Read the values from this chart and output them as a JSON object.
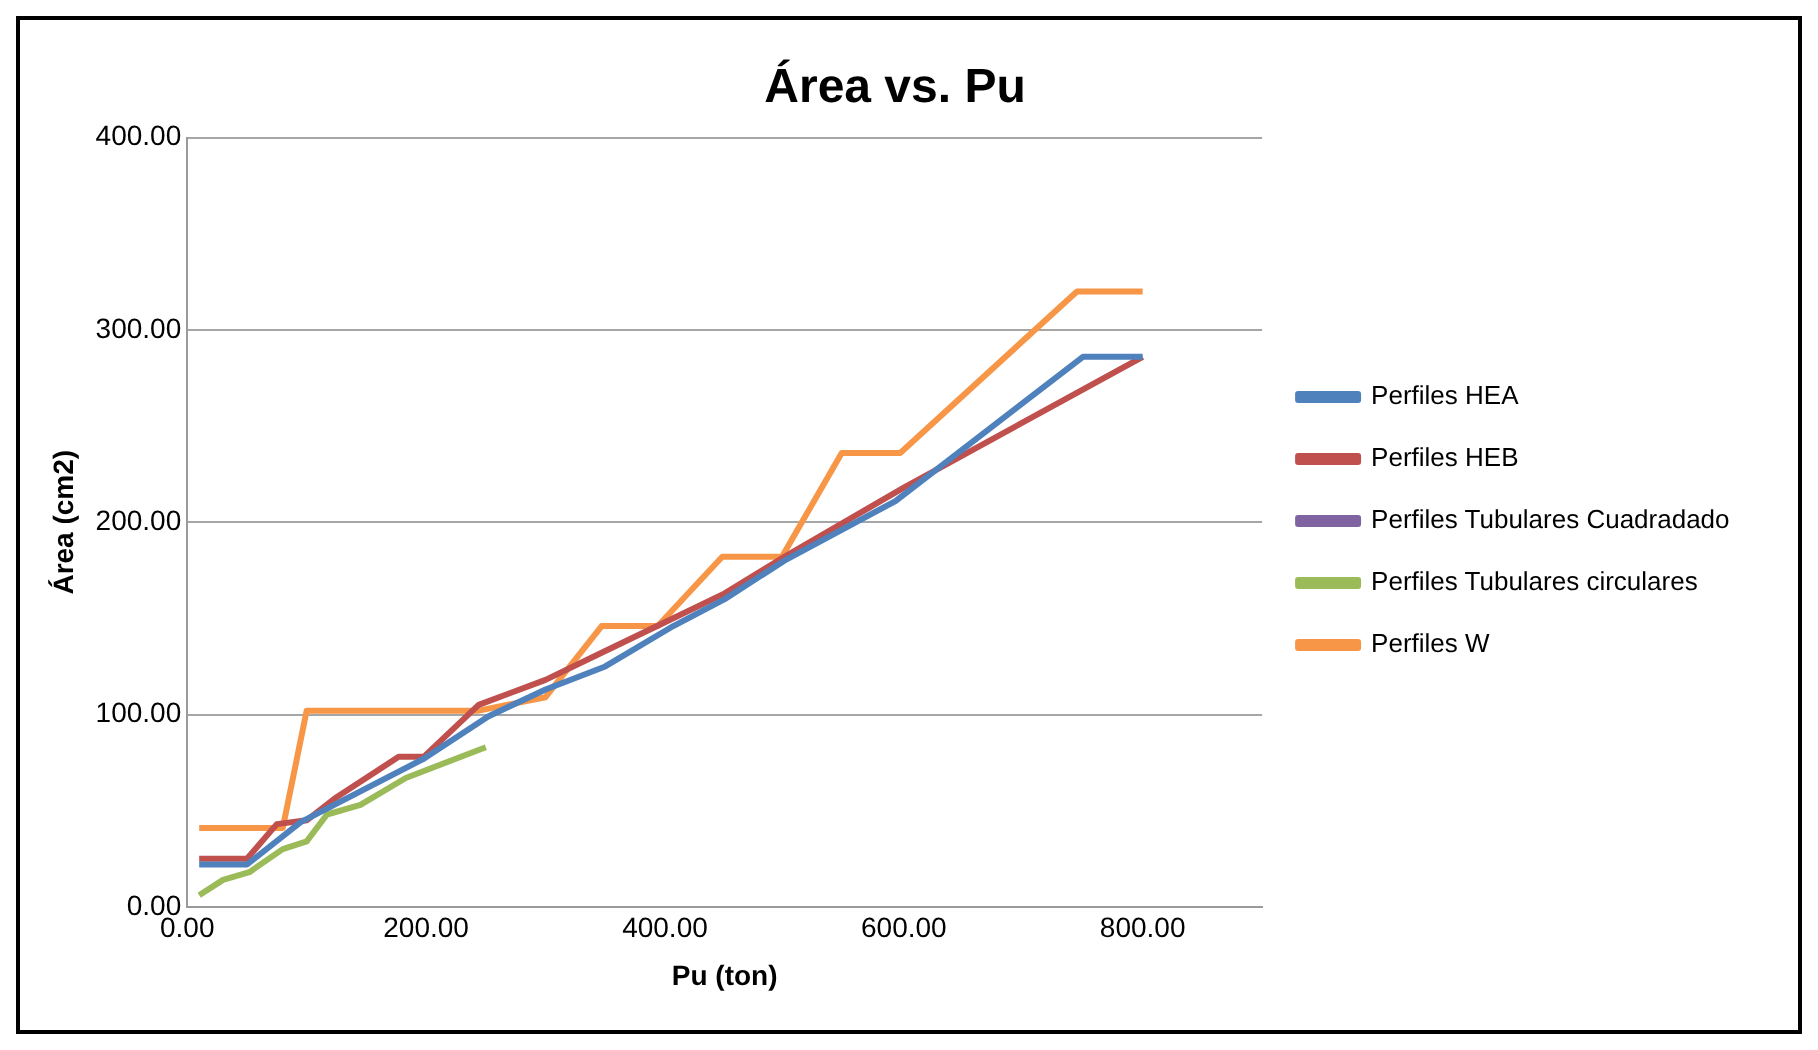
{
  "chart_data": {
    "type": "line",
    "title": "Área vs. Pu",
    "xlabel": "Pu (ton)",
    "ylabel": "Área (cm2)",
    "xlim": [
      0,
      900
    ],
    "xticks": [
      {
        "value": 0,
        "label": "0.00"
      },
      {
        "value": 200,
        "label": "200.00"
      },
      {
        "value": 400,
        "label": "400.00"
      },
      {
        "value": 600,
        "label": "600.00"
      },
      {
        "value": 800,
        "label": "800.00"
      }
    ],
    "ylim": [
      0,
      400
    ],
    "yticks": [
      {
        "value": 0,
        "label": "0.00"
      },
      {
        "value": 100,
        "label": "100.00"
      },
      {
        "value": 200,
        "label": "200.00"
      },
      {
        "value": 300,
        "label": "300.00"
      },
      {
        "value": 400,
        "label": "400.00"
      }
    ],
    "grid": "y",
    "legend": "right",
    "marker": "none",
    "line_style": "solid",
    "series": [
      {
        "name": "Perfiles HEA",
        "color": "#4f81bd",
        "x": [
          10,
          50,
          95,
          198,
          252,
          300,
          350,
          407,
          450,
          500,
          593,
          750,
          800
        ],
        "values": [
          22,
          22,
          44,
          77,
          99,
          113,
          125,
          146,
          160,
          180,
          211,
          286,
          286
        ]
      },
      {
        "name": "Perfiles HEB",
        "color": "#c0504d",
        "x": [
          10,
          50,
          75,
          100,
          125,
          177,
          198,
          244,
          300,
          350,
          400,
          450,
          500,
          600,
          800
        ],
        "values": [
          25,
          25,
          43,
          45,
          57,
          78,
          78,
          105,
          118,
          133,
          148,
          163,
          182,
          218,
          286
        ]
      },
      {
        "name": "Perfiles Tubulares Cuadradado",
        "color": "#8064a2"
      },
      {
        "name": "Perfiles Tubulares circulares",
        "color": "#9bbb59",
        "x": [
          10,
          30,
          52,
          80,
          100,
          117,
          145,
          183,
          250
        ],
        "values": [
          6,
          14,
          18,
          30,
          34,
          48,
          53,
          67,
          83
        ]
      },
      {
        "name": "Perfiles W",
        "color": "#f79646",
        "x": [
          10,
          80,
          100,
          244,
          300,
          347,
          394,
          448,
          498,
          548,
          597,
          745,
          800
        ],
        "values": [
          41,
          41,
          102,
          102,
          109,
          146,
          146,
          182,
          182,
          236,
          236,
          320,
          320
        ]
      }
    ]
  }
}
